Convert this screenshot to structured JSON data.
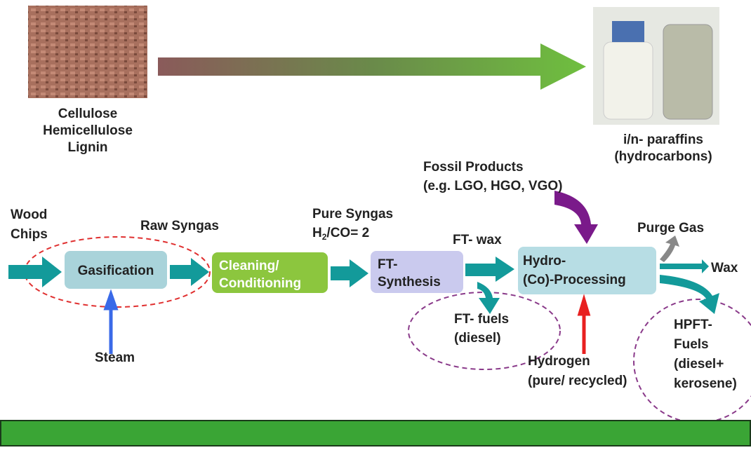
{
  "feedstock": {
    "lines": [
      "Cellulose",
      "Hemicellulose",
      "Lignin"
    ]
  },
  "product": {
    "lines": [
      "i/n- paraffins",
      "(hydrocarbons)"
    ]
  },
  "inputs": {
    "wood": [
      "Wood",
      "Chips"
    ],
    "steam": "Steam",
    "fossil": [
      "Fossil Products",
      "(e.g. LGO, HGO,  VGO)"
    ],
    "hydrogen": [
      "Hydrogen",
      "(pure/ recycled)"
    ]
  },
  "streams": {
    "raw_syngas": "Raw Syngas",
    "pure_syngas": [
      "Pure Syngas",
      "H",
      "2",
      "/CO= 2"
    ],
    "ft_wax": "FT- wax",
    "purge_gas": "Purge Gas",
    "wax": "Wax"
  },
  "nodes": [
    {
      "lines": [
        "Gasification"
      ]
    },
    {
      "lines": [
        "Cleaning/",
        "Conditioning"
      ]
    },
    {
      "lines": [
        "FT-",
        "Synthesis"
      ]
    },
    {
      "lines": [
        "Hydro-",
        "(Co)-Processing"
      ]
    }
  ],
  "outputs": {
    "ft_fuels": [
      "FT- fuels",
      "(diesel)"
    ],
    "hpft_fuels": [
      "HPFT-",
      "Fuels",
      "(diesel+",
      "kerosene)"
    ]
  }
}
